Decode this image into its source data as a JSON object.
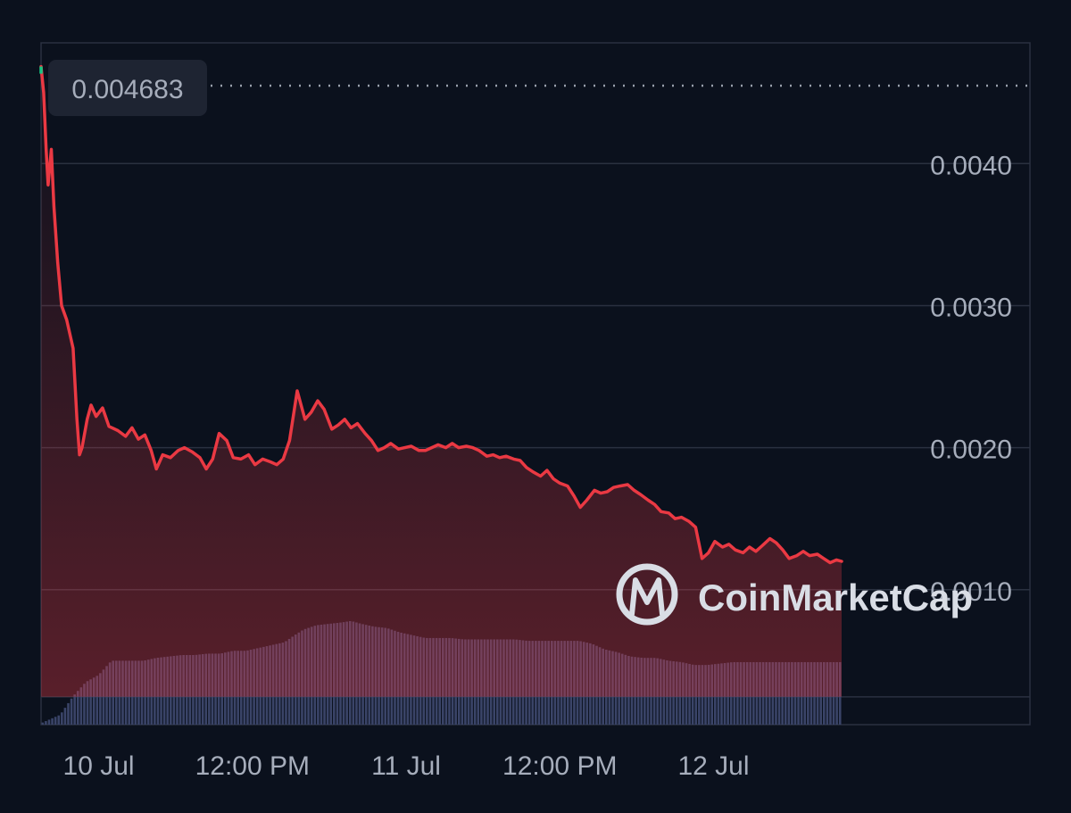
{
  "colors": {
    "background": "#0b111d",
    "line": "#ea3943",
    "line_start": "#16c784",
    "area_fill": "#ea3943",
    "grid": "#2a3140",
    "volume": "#3a4468",
    "label_bg": "#1e2432",
    "text": "#a6adbb",
    "brand": "#d9dde5"
  },
  "brand": {
    "name": "CoinMarketCap",
    "icon": "coinmarketcap-logo-icon"
  },
  "chart_data": {
    "type": "line",
    "title": "",
    "xlabel": "",
    "ylabel": "",
    "current_value_label": "0.004683",
    "ylim": [
      5e-05,
      0.00485
    ],
    "xlim": [
      0,
      77.2
    ],
    "y_ticks": [
      {
        "value": 0.004,
        "label": "0.0040"
      },
      {
        "value": 0.003,
        "label": "0.0030"
      },
      {
        "value": 0.002,
        "label": "0.0020"
      },
      {
        "value": 0.001,
        "label": "0.0010"
      }
    ],
    "x_ticks": [
      {
        "value": 4.5,
        "label": "10 Jul"
      },
      {
        "value": 16.5,
        "label": "12:00 PM"
      },
      {
        "value": 28.5,
        "label": "11 Jul"
      },
      {
        "value": 40.5,
        "label": "12:00 PM"
      },
      {
        "value": 52.5,
        "label": "12 Jul"
      }
    ],
    "grid": true,
    "legend": "none",
    "series": [
      {
        "kind": "price",
        "points": [
          [
            0,
            0.004683
          ],
          [
            0.2,
            0.0045
          ],
          [
            0.4,
            0.0041
          ],
          [
            0.55,
            0.00385
          ],
          [
            0.8,
            0.0041
          ],
          [
            1.0,
            0.0037
          ],
          [
            1.3,
            0.0033
          ],
          [
            1.6,
            0.003
          ],
          [
            2.0,
            0.0029
          ],
          [
            2.5,
            0.0027
          ],
          [
            2.8,
            0.0022
          ],
          [
            3.0,
            0.00195
          ],
          [
            3.2,
            0.002
          ],
          [
            3.6,
            0.0022
          ],
          [
            3.9,
            0.0023
          ],
          [
            4.3,
            0.00222
          ],
          [
            4.8,
            0.00228
          ],
          [
            5.3,
            0.00215
          ],
          [
            6.0,
            0.00212
          ],
          [
            6.6,
            0.00208
          ],
          [
            7.1,
            0.00214
          ],
          [
            7.6,
            0.00206
          ],
          [
            8.1,
            0.00209
          ],
          [
            8.6,
            0.00198
          ],
          [
            9.0,
            0.00185
          ],
          [
            9.5,
            0.00195
          ],
          [
            10.1,
            0.00193
          ],
          [
            10.7,
            0.00198
          ],
          [
            11.2,
            0.002
          ],
          [
            11.8,
            0.00197
          ],
          [
            12.4,
            0.00193
          ],
          [
            12.9,
            0.00185
          ],
          [
            13.4,
            0.00192
          ],
          [
            13.9,
            0.0021
          ],
          [
            14.5,
            0.00205
          ],
          [
            15.0,
            0.00193
          ],
          [
            15.6,
            0.00192
          ],
          [
            16.2,
            0.00195
          ],
          [
            16.7,
            0.00188
          ],
          [
            17.3,
            0.00192
          ],
          [
            17.9,
            0.0019
          ],
          [
            18.4,
            0.00188
          ],
          [
            18.9,
            0.00192
          ],
          [
            19.4,
            0.00205
          ],
          [
            20.0,
            0.0024
          ],
          [
            20.6,
            0.0022
          ],
          [
            21.1,
            0.00225
          ],
          [
            21.6,
            0.00233
          ],
          [
            22.1,
            0.00227
          ],
          [
            22.7,
            0.00213
          ],
          [
            23.2,
            0.00216
          ],
          [
            23.7,
            0.0022
          ],
          [
            24.2,
            0.00214
          ],
          [
            24.7,
            0.00217
          ],
          [
            25.3,
            0.0021
          ],
          [
            25.8,
            0.00205
          ],
          [
            26.3,
            0.00198
          ],
          [
            26.8,
            0.002
          ],
          [
            27.3,
            0.00203
          ],
          [
            27.9,
            0.00199
          ],
          [
            28.4,
            0.002
          ],
          [
            28.9,
            0.00201
          ],
          [
            29.5,
            0.00198
          ],
          [
            30.0,
            0.00198
          ],
          [
            30.5,
            0.002
          ],
          [
            31.0,
            0.00202
          ],
          [
            31.6,
            0.002
          ],
          [
            32.1,
            0.00203
          ],
          [
            32.6,
            0.002
          ],
          [
            33.2,
            0.00201
          ],
          [
            33.7,
            0.002
          ],
          [
            34.2,
            0.00198
          ],
          [
            34.8,
            0.00194
          ],
          [
            35.3,
            0.00195
          ],
          [
            35.8,
            0.00193
          ],
          [
            36.3,
            0.00194
          ],
          [
            36.9,
            0.00192
          ],
          [
            37.4,
            0.00191
          ],
          [
            37.9,
            0.00186
          ],
          [
            38.4,
            0.00183
          ],
          [
            39.0,
            0.0018
          ],
          [
            39.5,
            0.00184
          ],
          [
            40.0,
            0.00178
          ],
          [
            40.5,
            0.00175
          ],
          [
            41.1,
            0.00173
          ],
          [
            41.6,
            0.00166
          ],
          [
            42.1,
            0.00158
          ],
          [
            42.6,
            0.00163
          ],
          [
            43.2,
            0.0017
          ],
          [
            43.7,
            0.00168
          ],
          [
            44.2,
            0.00169
          ],
          [
            44.7,
            0.00172
          ],
          [
            45.2,
            0.00173
          ],
          [
            45.8,
            0.00174
          ],
          [
            46.3,
            0.0017
          ],
          [
            46.8,
            0.00167
          ],
          [
            47.4,
            0.00163
          ],
          [
            47.9,
            0.0016
          ],
          [
            48.4,
            0.00155
          ],
          [
            49.0,
            0.00154
          ],
          [
            49.5,
            0.0015
          ],
          [
            50.0,
            0.00151
          ],
          [
            50.6,
            0.00148
          ],
          [
            51.1,
            0.00144
          ],
          [
            51.6,
            0.00122
          ],
          [
            52.1,
            0.00126
          ],
          [
            52.6,
            0.00134
          ],
          [
            53.2,
            0.0013
          ],
          [
            53.7,
            0.00132
          ],
          [
            54.2,
            0.00128
          ],
          [
            54.8,
            0.00126
          ],
          [
            55.3,
            0.0013
          ],
          [
            55.8,
            0.00127
          ],
          [
            56.3,
            0.00131
          ],
          [
            56.9,
            0.00136
          ],
          [
            57.4,
            0.00133
          ],
          [
            57.9,
            0.00128
          ],
          [
            58.4,
            0.00122
          ],
          [
            59.0,
            0.00124
          ],
          [
            59.5,
            0.00127
          ],
          [
            60.0,
            0.00124
          ],
          [
            60.6,
            0.00125
          ],
          [
            61.1,
            0.00122
          ],
          [
            61.6,
            0.00119
          ],
          [
            62.1,
            0.00121
          ],
          [
            62.5,
            0.0012
          ]
        ]
      },
      {
        "kind": "volume",
        "points": [
          [
            0,
            6e-05
          ],
          [
            1.5,
            0.00012
          ],
          [
            2.5,
            0.00025
          ],
          [
            3.5,
            0.00035
          ],
          [
            4.5,
            0.0004
          ],
          [
            5.0,
            0.00045
          ],
          [
            5.5,
            0.0005
          ],
          [
            6.5,
            0.0005
          ],
          [
            8,
            0.0005
          ],
          [
            9,
            0.00052
          ],
          [
            10,
            0.00053
          ],
          [
            11,
            0.00054
          ],
          [
            12,
            0.00054
          ],
          [
            13,
            0.00055
          ],
          [
            14,
            0.00055
          ],
          [
            15,
            0.00057
          ],
          [
            16,
            0.00057
          ],
          [
            17,
            0.00059
          ],
          [
            18,
            0.00061
          ],
          [
            19,
            0.00063
          ],
          [
            19.8,
            0.00068
          ],
          [
            20.5,
            0.00072
          ],
          [
            21.5,
            0.00075
          ],
          [
            22.5,
            0.00076
          ],
          [
            23.5,
            0.00077
          ],
          [
            24.2,
            0.00078
          ],
          [
            25,
            0.00076
          ],
          [
            26,
            0.00074
          ],
          [
            27,
            0.00073
          ],
          [
            28,
            0.0007
          ],
          [
            29,
            0.00068
          ],
          [
            30,
            0.00066
          ],
          [
            31,
            0.00066
          ],
          [
            32,
            0.00066
          ],
          [
            33,
            0.00065
          ],
          [
            34,
            0.00065
          ],
          [
            35,
            0.00065
          ],
          [
            36,
            0.00065
          ],
          [
            37,
            0.00065
          ],
          [
            38,
            0.00064
          ],
          [
            39,
            0.00064
          ],
          [
            40,
            0.00064
          ],
          [
            41,
            0.00064
          ],
          [
            42,
            0.00064
          ],
          [
            43,
            0.00062
          ],
          [
            44,
            0.00058
          ],
          [
            45,
            0.00056
          ],
          [
            46,
            0.00053
          ],
          [
            47,
            0.00052
          ],
          [
            48,
            0.00052
          ],
          [
            49,
            0.0005
          ],
          [
            50,
            0.00049
          ],
          [
            51,
            0.00047
          ],
          [
            52,
            0.00047
          ],
          [
            53,
            0.00048
          ],
          [
            54,
            0.00049
          ],
          [
            55,
            0.00049
          ],
          [
            56,
            0.00049
          ],
          [
            57,
            0.00049
          ],
          [
            58,
            0.00049
          ],
          [
            59,
            0.00049
          ],
          [
            60,
            0.00049
          ],
          [
            61,
            0.00049
          ],
          [
            62.5,
            0.00049
          ]
        ]
      }
    ]
  }
}
